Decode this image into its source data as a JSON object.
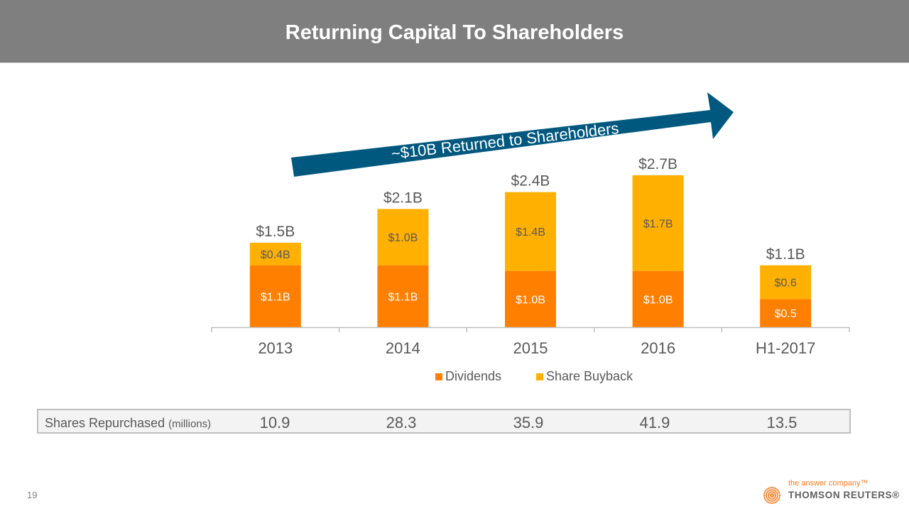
{
  "header": {
    "title": "Returning Capital To Shareholders"
  },
  "banner": {
    "text": "~$10B Returned to Shareholders",
    "color": "#00587f"
  },
  "chart_data": {
    "type": "bar",
    "stacked": true,
    "title": "",
    "xlabel": "",
    "ylabel": "",
    "categories": [
      "2013",
      "2014",
      "2015",
      "2016",
      "H1-2017"
    ],
    "series": [
      {
        "name": "Dividends",
        "color": "#ff7f00",
        "values": [
          1.1,
          1.1,
          1.0,
          1.0,
          0.5
        ],
        "labels": [
          "$1.1B",
          "$1.1B",
          "$1.0B",
          "$1.0B",
          "$0.5"
        ]
      },
      {
        "name": "Share Buyback",
        "color": "#ffb000",
        "values": [
          0.4,
          1.0,
          1.4,
          1.7,
          0.6
        ],
        "labels": [
          "$0.4B",
          "$1.0B",
          "$1.4B",
          "$1.7B",
          "$0.6"
        ]
      }
    ],
    "totals": [
      1.5,
      2.1,
      2.4,
      2.7,
      1.1
    ],
    "total_labels": [
      "$1.5B",
      "$2.1B",
      "$2.4B",
      "$2.7B",
      "$1.1B"
    ],
    "units": "USD billions",
    "ylim": [
      0,
      2.8
    ],
    "grid": false,
    "legend": "bottom"
  },
  "legend": {
    "items": [
      {
        "label": "Dividends",
        "color": "#ff7f00"
      },
      {
        "label": "Share Buyback",
        "color": "#ffb000"
      }
    ]
  },
  "shares_repurchased": {
    "label": "Shares Repurchased",
    "unit": "(millions)",
    "values": [
      "10.9",
      "28.3",
      "35.9",
      "41.9",
      "13.5"
    ]
  },
  "footer": {
    "page_number": "19",
    "logo_tagline": "the answer company™",
    "logo_name": "THOMSON REUTERS®"
  }
}
